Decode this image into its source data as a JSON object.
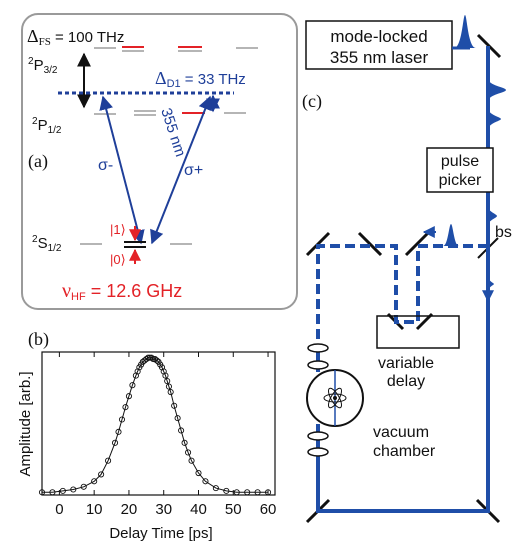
{
  "panel_a": {
    "label": "(a)",
    "fs_symbol": "Δ",
    "fs_sub": "FS",
    "fs_value": " = 100 THz",
    "p32_sup": "2",
    "p32_main": "P",
    "p32_sub": "3/2",
    "p12_sup": "2",
    "p12_main": "P",
    "p12_sub": "1/2",
    "d1_symbol": "Δ",
    "d1_sub": "D1",
    "d1_value": " = 33 THz",
    "sigma_minus": "σ-",
    "sigma_plus": "σ+",
    "wavelength": "355 nm",
    "s12_sup": "2",
    "s12_main": "S",
    "s12_sub": "1/2",
    "ket1": "|1⟩",
    "ket0": "|0⟩",
    "nu_symbol": "ν",
    "nu_sub": "HF",
    "nu_value": " = 12.6 GHz",
    "colors": {
      "blue": "#1f3f99",
      "red": "#e32227",
      "gray": "#b5b5b5",
      "frame": "#9a9a9a"
    }
  },
  "panel_b": {
    "label": "(b)",
    "chart_data": {
      "type": "scatter",
      "title": "",
      "xlabel": "Delay Time [ps]",
      "ylabel": "Amplitude [arb.]",
      "xlim": [
        -5,
        62
      ],
      "ylim": [
        0,
        1.0
      ],
      "xticks": [
        0,
        10,
        20,
        30,
        40,
        50,
        60
      ],
      "grid": false,
      "series": [
        {
          "x": [
            -5,
            -2,
            1,
            4,
            7,
            10,
            12,
            14,
            16,
            17,
            18,
            19,
            20,
            21,
            22,
            22.5,
            23,
            23.5,
            24,
            24.5,
            25,
            25.5,
            26,
            26.5,
            27,
            27.5,
            28,
            28.5,
            29,
            29.5,
            30,
            30.5,
            31,
            31.5,
            32,
            33,
            34,
            35,
            36,
            37,
            38,
            40,
            42,
            45,
            48,
            51,
            54,
            57,
            60
          ],
          "y": [
            0.02,
            0.02,
            0.03,
            0.04,
            0.06,
            0.1,
            0.15,
            0.25,
            0.38,
            0.46,
            0.55,
            0.64,
            0.72,
            0.8,
            0.87,
            0.9,
            0.93,
            0.95,
            0.97,
            0.98,
            0.99,
            1.0,
            1.0,
            1.0,
            0.99,
            0.99,
            0.98,
            0.97,
            0.95,
            0.93,
            0.9,
            0.87,
            0.83,
            0.79,
            0.75,
            0.65,
            0.56,
            0.47,
            0.38,
            0.31,
            0.25,
            0.16,
            0.1,
            0.05,
            0.03,
            0.02,
            0.02,
            0.02,
            0.02
          ]
        }
      ]
    }
  },
  "panel_c": {
    "label": "(c)",
    "laser_line1": "mode-locked",
    "laser_line2": "355 nm laser",
    "picker_line1": "pulse",
    "picker_line2": "picker",
    "bs": "bs",
    "delay_line1": "variable",
    "delay_line2": "delay",
    "chamber_line1": "vacuum",
    "chamber_line2": "chamber",
    "colors": {
      "beam": "#1f4ea8"
    }
  }
}
